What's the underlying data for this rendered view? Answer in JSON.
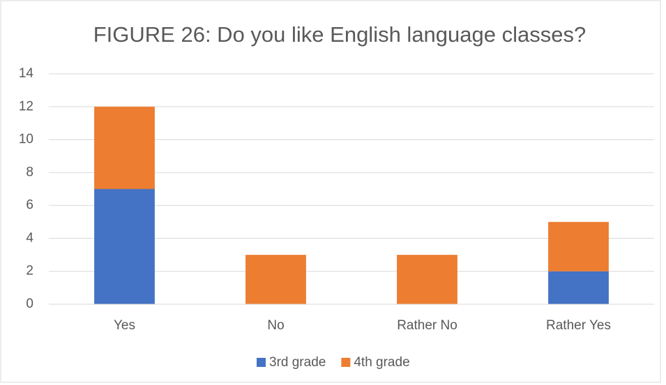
{
  "chart_data": {
    "type": "stacked_bar",
    "title": "FIGURE 26: Do you like English language classes?",
    "categories": [
      "Yes",
      "No",
      "Rather No",
      "Rather Yes"
    ],
    "series": [
      {
        "name": "3rd grade",
        "color": "#4472c4",
        "values": [
          7,
          0,
          0,
          2
        ]
      },
      {
        "name": "4th grade",
        "color": "#ed7d31",
        "values": [
          5,
          3,
          3,
          3
        ]
      }
    ],
    "ylim": [
      0,
      14
    ],
    "yticks": [
      0,
      2,
      4,
      6,
      8,
      10,
      12,
      14
    ],
    "grid": true,
    "legend": "bottom"
  }
}
